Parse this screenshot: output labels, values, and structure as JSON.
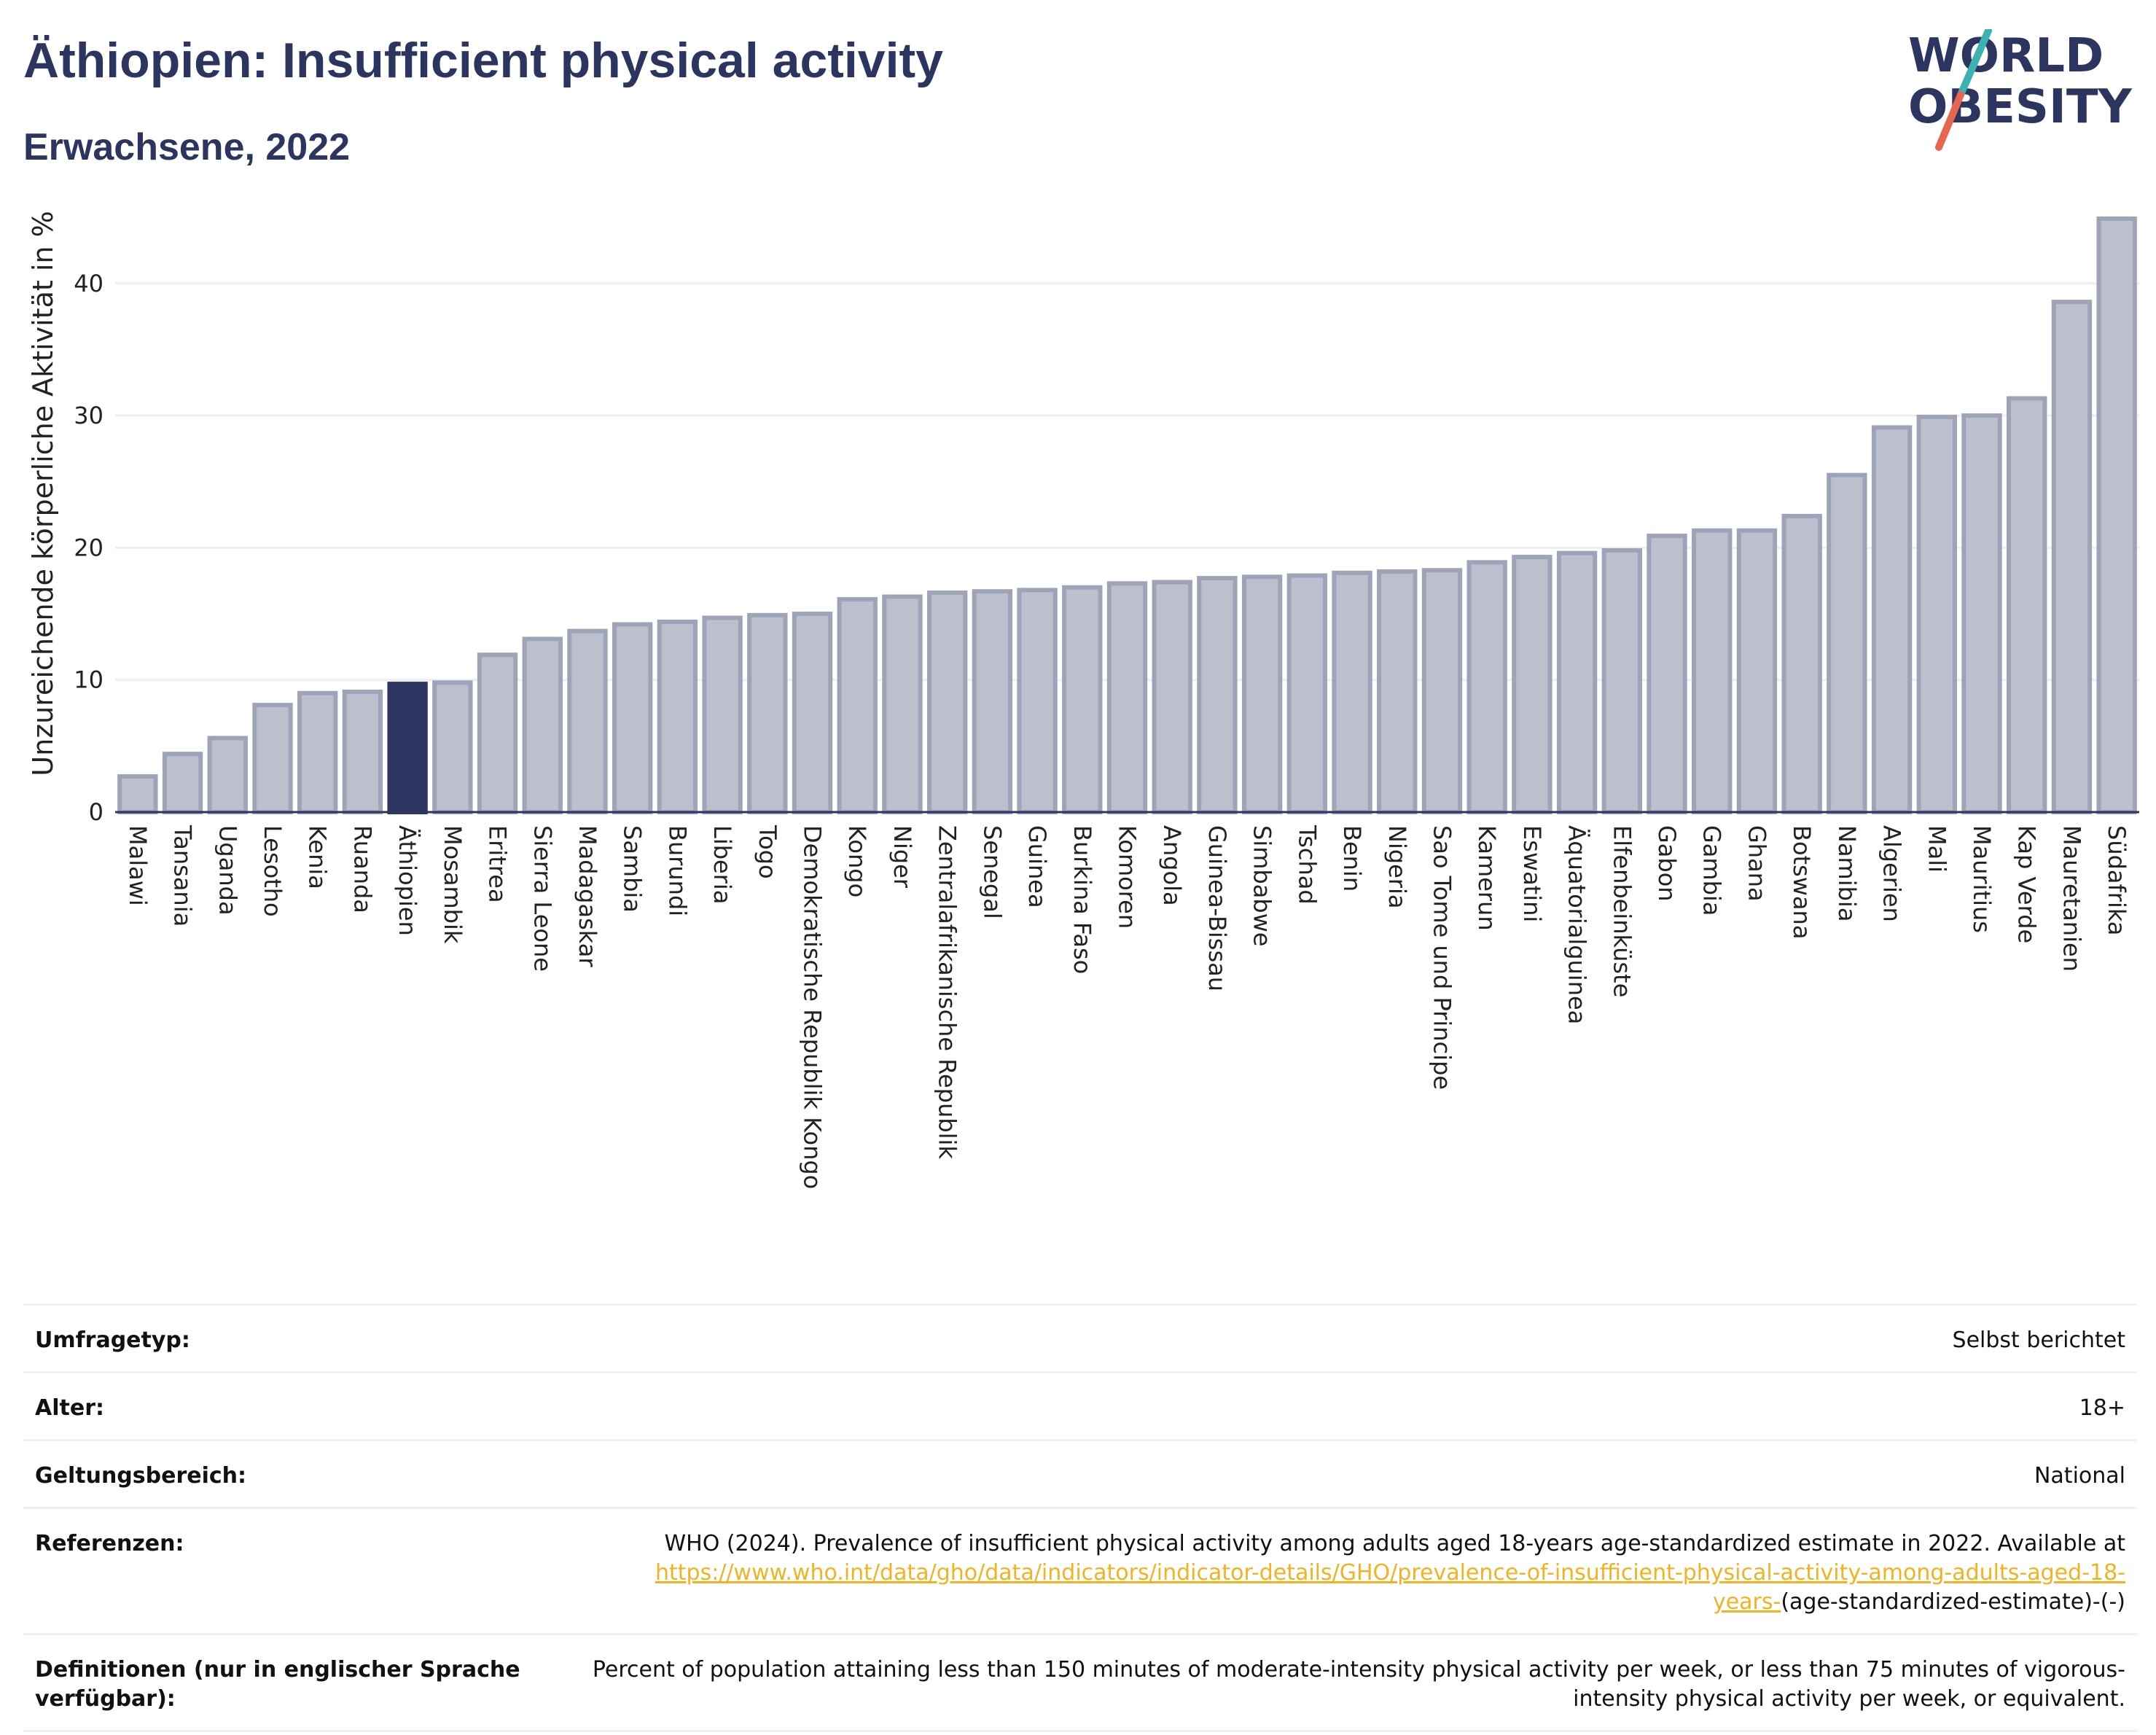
{
  "header": {
    "title": "Äthiopien: Insufficient physical activity",
    "subtitle": "Erwachsene, 2022"
  },
  "logo": {
    "line1": "WORLD",
    "line2": "OBESITY",
    "colors": {
      "text": "#2b3560",
      "slash_top": "#3bb3b3",
      "slash_bottom": "#e8664f"
    }
  },
  "colors": {
    "bar_fill": "#bcc0ce",
    "bar_stroke": "#9ea3b8",
    "highlight_fill": "#2b3560",
    "grid": "#eceef3",
    "axis": "#2b3560"
  },
  "chart_data": {
    "type": "bar",
    "ylabel": "Unzureichende körperliche Aktivität in %",
    "ylim": [
      0,
      46
    ],
    "yticks": [
      0,
      10,
      20,
      30,
      40
    ],
    "grid": true,
    "highlight": "Äthiopien",
    "categories": [
      "Malawi",
      "Tansania",
      "Uganda",
      "Lesotho",
      "Kenia",
      "Ruanda",
      "Äthiopien",
      "Mosambik",
      "Eritrea",
      "Sierra Leone",
      "Madagaskar",
      "Sambia",
      "Burundi",
      "Liberia",
      "Togo",
      "Demokratische Republik Kongo",
      "Kongo",
      "Niger",
      "Zentralafrikanische Republik",
      "Senegal",
      "Guinea",
      "Burkina Faso",
      "Komoren",
      "Angola",
      "Guinea-Bissau",
      "Simbabwe",
      "Tschad",
      "Benin",
      "Nigeria",
      "Sao Tome und Principe",
      "Kamerun",
      "Eswatini",
      "Äquatorialguinea",
      "Elfenbeinküste",
      "Gabon",
      "Gambia",
      "Ghana",
      "Botswana",
      "Namibia",
      "Algerien",
      "Mali",
      "Mauritius",
      "Kap Verde",
      "Mauretanien",
      "Südafrika"
    ],
    "values": [
      2.7,
      4.4,
      5.6,
      8.1,
      9.0,
      9.1,
      9.7,
      9.8,
      11.9,
      13.1,
      13.7,
      14.2,
      14.4,
      14.7,
      14.9,
      15.0,
      16.1,
      16.3,
      16.6,
      16.7,
      16.8,
      17.0,
      17.3,
      17.4,
      17.7,
      17.8,
      17.9,
      18.1,
      18.2,
      18.3,
      18.9,
      19.3,
      19.6,
      19.8,
      20.9,
      21.3,
      21.3,
      22.4,
      25.5,
      29.1,
      29.9,
      30.0,
      31.3,
      38.6,
      44.9
    ]
  },
  "meta": [
    {
      "label": "Umfragetyp:",
      "value": "Selbst berichtet"
    },
    {
      "label": "Alter:",
      "value": "18+"
    },
    {
      "label": "Geltungsbereich:",
      "value": "National"
    },
    {
      "label": "Referenzen:",
      "value_pre": "WHO (2024). Prevalence of insufficient physical activity among adults aged 18-years age-standardized estimate in 2022. Available at",
      "link": "https://www.who.int/data/gho/data/indicators/indicator-details/GHO/prevalence-of-insufficient-physical-activity-among-adults-aged-18-years-",
      "value_post": "(age-standardized-estimate)-(-)"
    },
    {
      "label": "Definitionen (nur in englischer Sprache verfügbar):",
      "value": "Percent of population attaining less than 150 minutes of moderate-intensity physical activity per week, or less than 75 minutes of vigorous-intensity physical activity per week, or equivalent."
    }
  ]
}
